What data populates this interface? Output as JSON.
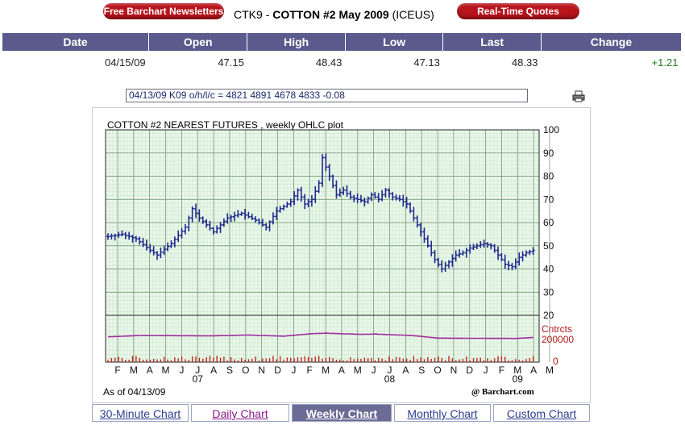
{
  "header": {
    "newsletters_label": "Free Barchart Newsletters",
    "realtime_label": "Real-Time Quotes",
    "symbol": "CTK9",
    "separator": "-",
    "name": "COTTON #2 May 2009",
    "exchange": "(ICEUS)"
  },
  "quote_table": {
    "headers": [
      "Date",
      "Open",
      "High",
      "Low",
      "Last",
      "Change"
    ],
    "row": [
      "04/15/09",
      "47.15",
      "48.43",
      "47.13",
      "48.33",
      "+1.21"
    ]
  },
  "ohlc_readout": "04/13/09 K09 o/h/l/c = 4821 4891 4678 4833 -0.08",
  "icons": {
    "printer": "printer-icon"
  },
  "colors": {
    "price": "#1f2a8f",
    "volume": "#c0281e",
    "open_interest": "#a02da0",
    "change_positive": "#1e7a1e",
    "header_bar": "#5a5a8c",
    "grid_minor": "#c6e6c6",
    "grid_major": "#6a8f6a"
  },
  "chart_footer": {
    "as_of": "As of 04/13/09",
    "brand": "@ Barchart.com"
  },
  "chart_data": {
    "type": "ohlc",
    "title": "COTTON #2 NEAREST FUTURES , weekly OHLC plot",
    "ylim": [
      20,
      100
    ],
    "yticks": [
      "100",
      "90",
      "80",
      "70",
      "60",
      "50",
      "40",
      "30",
      "20"
    ],
    "volume_labels": [
      "Cntrcts",
      "200000",
      "0"
    ],
    "x_month_labels": [
      "F",
      "M",
      "A",
      "M",
      "J",
      "J",
      "A",
      "S",
      "O",
      "N",
      "D",
      "J",
      "F",
      "M",
      "A",
      "M",
      "J",
      "J",
      "A",
      "S",
      "O",
      "N",
      "D",
      "J",
      "F",
      "M",
      "A",
      "M"
    ],
    "x_year_labels": [
      {
        "label": "07",
        "month_index": 5
      },
      {
        "label": "08",
        "month_index": 17
      },
      {
        "label": "09",
        "month_index": 25
      }
    ],
    "price_keypoints": [
      [
        0,
        54
      ],
      [
        4,
        55
      ],
      [
        8,
        53
      ],
      [
        12,
        48
      ],
      [
        14,
        46
      ],
      [
        18,
        51
      ],
      [
        22,
        58
      ],
      [
        24,
        66
      ],
      [
        26,
        62
      ],
      [
        30,
        56
      ],
      [
        34,
        62
      ],
      [
        38,
        64
      ],
      [
        42,
        61
      ],
      [
        45,
        58
      ],
      [
        48,
        65
      ],
      [
        52,
        69
      ],
      [
        54,
        74
      ],
      [
        56,
        68
      ],
      [
        58,
        70
      ],
      [
        60,
        77
      ],
      [
        61,
        88
      ],
      [
        63,
        80
      ],
      [
        65,
        72
      ],
      [
        67,
        74
      ],
      [
        69,
        71
      ],
      [
        71,
        70
      ],
      [
        73,
        69
      ],
      [
        75,
        72
      ],
      [
        77,
        70
      ],
      [
        79,
        74
      ],
      [
        81,
        71
      ],
      [
        83,
        70
      ],
      [
        85,
        68
      ],
      [
        87,
        62
      ],
      [
        89,
        56
      ],
      [
        91,
        50
      ],
      [
        93,
        44
      ],
      [
        95,
        40
      ],
      [
        97,
        43
      ],
      [
        99,
        46
      ],
      [
        101,
        47
      ],
      [
        103,
        49
      ],
      [
        105,
        50
      ],
      [
        107,
        51
      ],
      [
        109,
        50
      ],
      [
        111,
        46
      ],
      [
        113,
        42
      ],
      [
        115,
        41
      ],
      [
        117,
        45
      ],
      [
        119,
        47
      ],
      [
        121,
        48
      ]
    ],
    "open_interest_keypoints": [
      [
        0,
        168000
      ],
      [
        10,
        190000
      ],
      [
        20,
        185000
      ],
      [
        30,
        183000
      ],
      [
        40,
        195000
      ],
      [
        50,
        178000
      ],
      [
        58,
        215000
      ],
      [
        62,
        222000
      ],
      [
        66,
        215000
      ],
      [
        72,
        205000
      ],
      [
        76,
        210000
      ],
      [
        80,
        200000
      ],
      [
        86,
        190000
      ],
      [
        90,
        170000
      ],
      [
        94,
        150000
      ],
      [
        100,
        148000
      ],
      [
        110,
        146000
      ],
      [
        116,
        145000
      ],
      [
        121,
        160000
      ]
    ],
    "weeks": 122
  }
}
